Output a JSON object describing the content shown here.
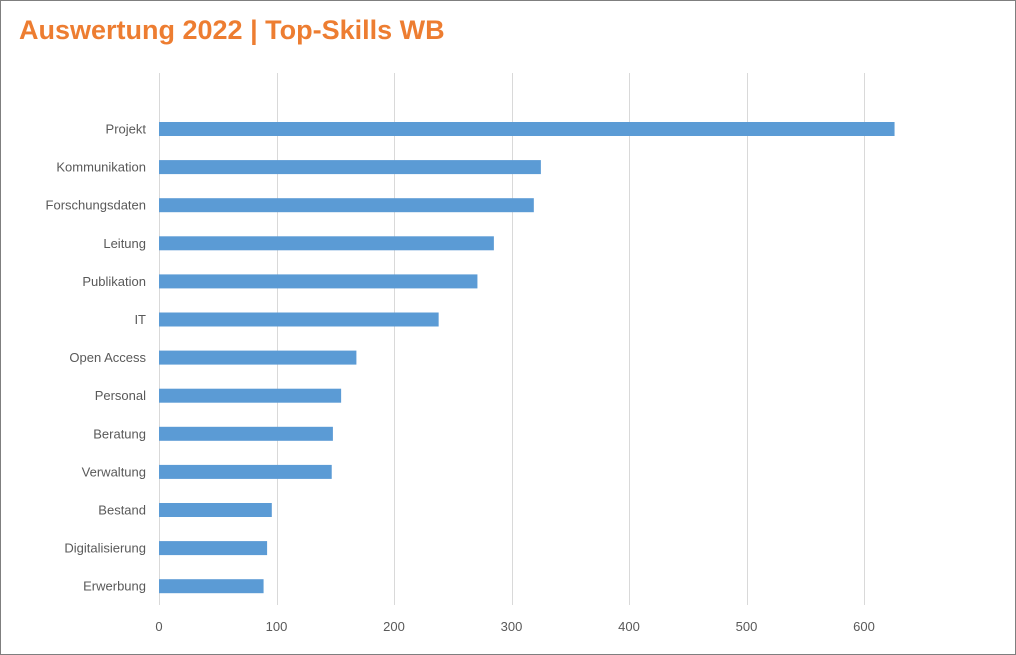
{
  "title": "Auswertung 2022 | Top-Skills WB",
  "chart_data": {
    "type": "bar",
    "orientation": "horizontal",
    "title": "Auswertung 2022 | Top-Skills WB",
    "categories": [
      "Projekt",
      "Kommunikation",
      "Forschungsdaten",
      "Leitung",
      "Publikation",
      "IT",
      "Open Access",
      "Personal",
      "Beratung",
      "Verwaltung",
      "Bestand",
      "Digitalisierung",
      "Erwerbung"
    ],
    "values": [
      626,
      325,
      319,
      285,
      271,
      238,
      168,
      155,
      148,
      147,
      96,
      92,
      89
    ],
    "xlim": [
      0,
      700
    ],
    "xticks": [
      0,
      100,
      200,
      300,
      400,
      500,
      600
    ],
    "grid": true,
    "legend": "none",
    "bar_color": "#5b9bd5",
    "title_color": "#ed7d31",
    "grid_color": "#d9d9d9",
    "label_color": "#595959"
  }
}
